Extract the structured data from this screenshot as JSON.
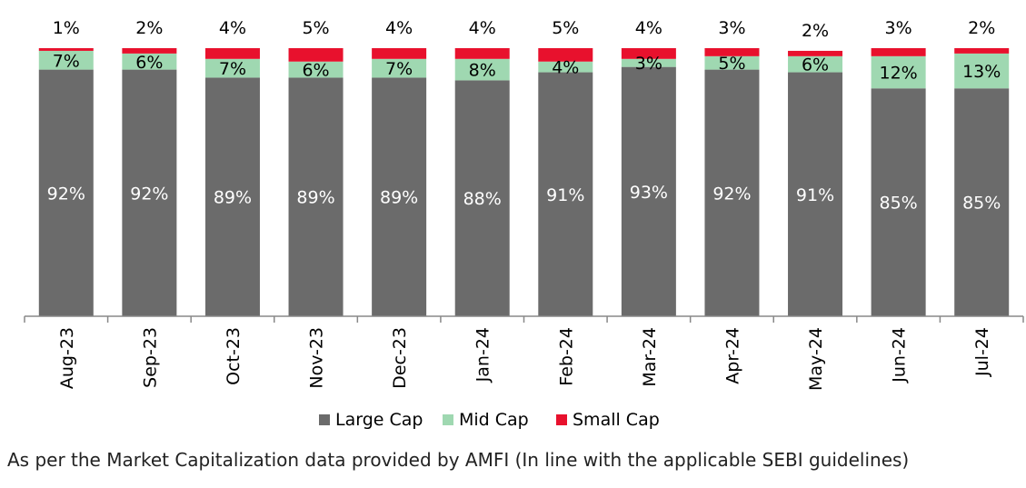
{
  "chart_data": {
    "type": "bar",
    "stacked": true,
    "categories": [
      "Aug-23",
      "Sep-23",
      "Oct-23",
      "Nov-23",
      "Dec-23",
      "Jan-24",
      "Feb-24",
      "Mar-24",
      "Apr-24",
      "May-24",
      "Jun-24",
      "Jul-24"
    ],
    "series": [
      {
        "name": "Large Cap",
        "color": "#6b6b6b",
        "label_color": "#ffffff",
        "values": [
          92,
          92,
          89,
          89,
          89,
          88,
          91,
          93,
          92,
          91,
          85,
          85
        ]
      },
      {
        "name": "Mid Cap",
        "color": "#9fd8b1",
        "label_color": "#000000",
        "values": [
          7,
          6,
          7,
          6,
          7,
          8,
          4,
          3,
          5,
          6,
          12,
          13
        ]
      },
      {
        "name": "Small Cap",
        "color": "#e8112d",
        "label_color": "#000000",
        "values": [
          1,
          2,
          4,
          5,
          4,
          4,
          5,
          4,
          3,
          2,
          3,
          2
        ]
      }
    ],
    "value_suffix": "%",
    "ylim": [
      0,
      100
    ],
    "grid": false,
    "legend": "bottom"
  },
  "footnote": "As per the Market Capitalization data provided by AMFI (In line with the applicable SEBI guidelines)"
}
